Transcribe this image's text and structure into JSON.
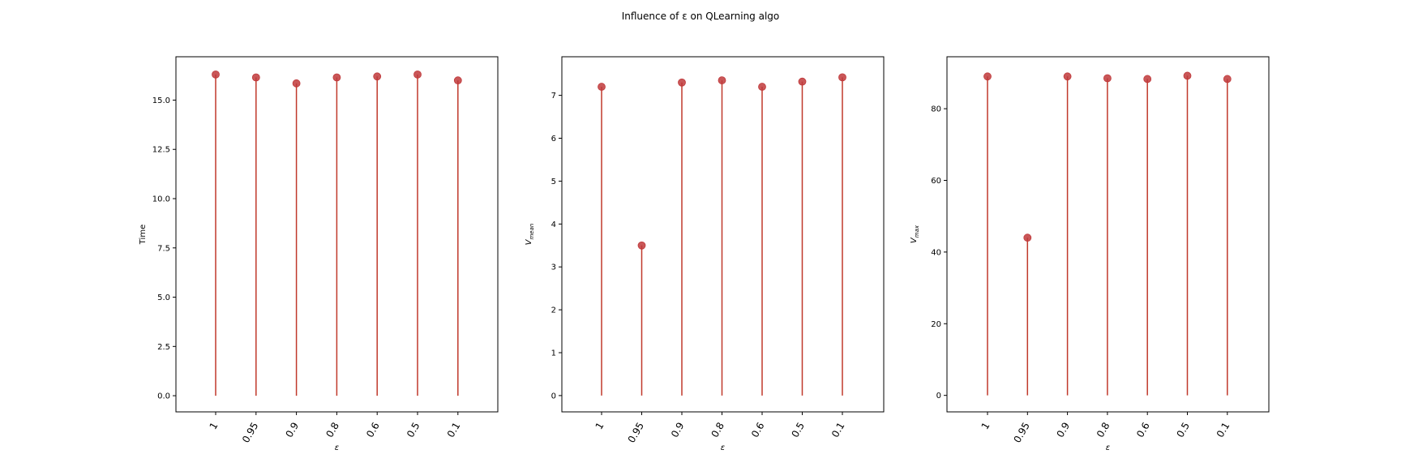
{
  "figure": {
    "title": "Influence of ε on QLearning algo"
  },
  "colors": {
    "stem": "#c0392b",
    "marker": "#c0393b"
  },
  "chart_data": [
    {
      "type": "stem",
      "categories": [
        "1",
        "0.95",
        "0.9",
        "0.8",
        "0.6",
        "0.5",
        "0.1"
      ],
      "values": [
        16.3,
        16.15,
        15.85,
        16.15,
        16.2,
        16.3,
        16.0
      ],
      "xlabel": "ε",
      "ylabel": "Time",
      "ylim": [
        -0.82,
        17.2
      ],
      "yticks": [
        0.0,
        2.5,
        5.0,
        7.5,
        10.0,
        12.5,
        15.0
      ],
      "ytick_labels": [
        "0.0",
        "2.5",
        "5.0",
        "7.5",
        "10.0",
        "12.5",
        "15.0"
      ],
      "grid": false
    },
    {
      "type": "stem",
      "categories": [
        "1",
        "0.95",
        "0.9",
        "0.8",
        "0.6",
        "0.5",
        "0.1"
      ],
      "values": [
        7.2,
        3.5,
        7.3,
        7.35,
        7.2,
        7.32,
        7.42
      ],
      "xlabel": "ε",
      "ylabel": "V_mean",
      "ylim": [
        -0.38,
        7.9
      ],
      "yticks": [
        0,
        1,
        2,
        3,
        4,
        5,
        6,
        7
      ],
      "ytick_labels": [
        "0",
        "1",
        "2",
        "3",
        "4",
        "5",
        "6",
        "7"
      ],
      "grid": false
    },
    {
      "type": "stem",
      "categories": [
        "1",
        "0.95",
        "0.9",
        "0.8",
        "0.6",
        "0.5",
        "0.1"
      ],
      "values": [
        89.0,
        44.0,
        89.0,
        88.5,
        88.3,
        89.2,
        88.3
      ],
      "xlabel": "ε",
      "ylabel": "V_max",
      "ylim": [
        -4.6,
        94.5
      ],
      "yticks": [
        0,
        20,
        40,
        60,
        80
      ],
      "ytick_labels": [
        "0",
        "20",
        "40",
        "60",
        "80"
      ],
      "grid": false
    }
  ]
}
